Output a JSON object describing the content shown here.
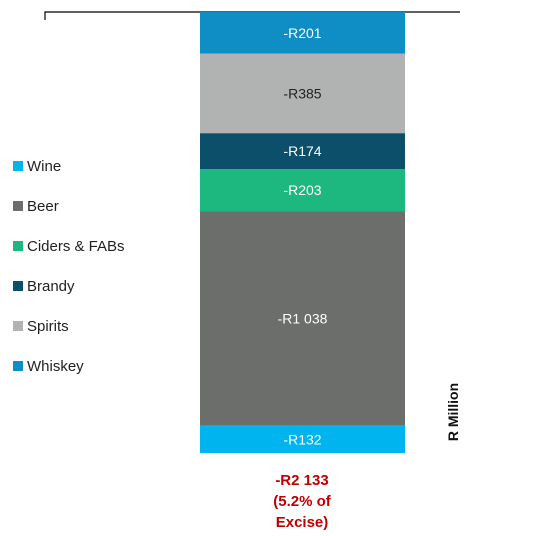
{
  "chart_data": {
    "type": "bar",
    "stacked": true,
    "categories": [
      ""
    ],
    "series": [
      {
        "name": "Wine",
        "values": [
          -132
        ],
        "label": "-R132",
        "color": "#00b4f0"
      },
      {
        "name": "Beer",
        "values": [
          -1038
        ],
        "label": "-R1 038",
        "color": "#6b6e6b"
      },
      {
        "name": "Ciders & FABs",
        "values": [
          -203
        ],
        "label": "-R203",
        "color": "#1db87f"
      },
      {
        "name": "Brandy",
        "values": [
          -174
        ],
        "label": "-R174",
        "color": "#0b4f6a"
      },
      {
        "name": "Spirits",
        "values": [
          -385
        ],
        "label": "-R385",
        "color": "#b1b3b2"
      },
      {
        "name": "Whiskey",
        "values": [
          -201
        ],
        "label": "-R201",
        "color": "#0e8ec4"
      }
    ],
    "ylabel": "R Million",
    "total_label": [
      "-R2 133",
      "(5.2% of",
      "Excise)"
    ],
    "legend_position": "left",
    "grid": false
  }
}
